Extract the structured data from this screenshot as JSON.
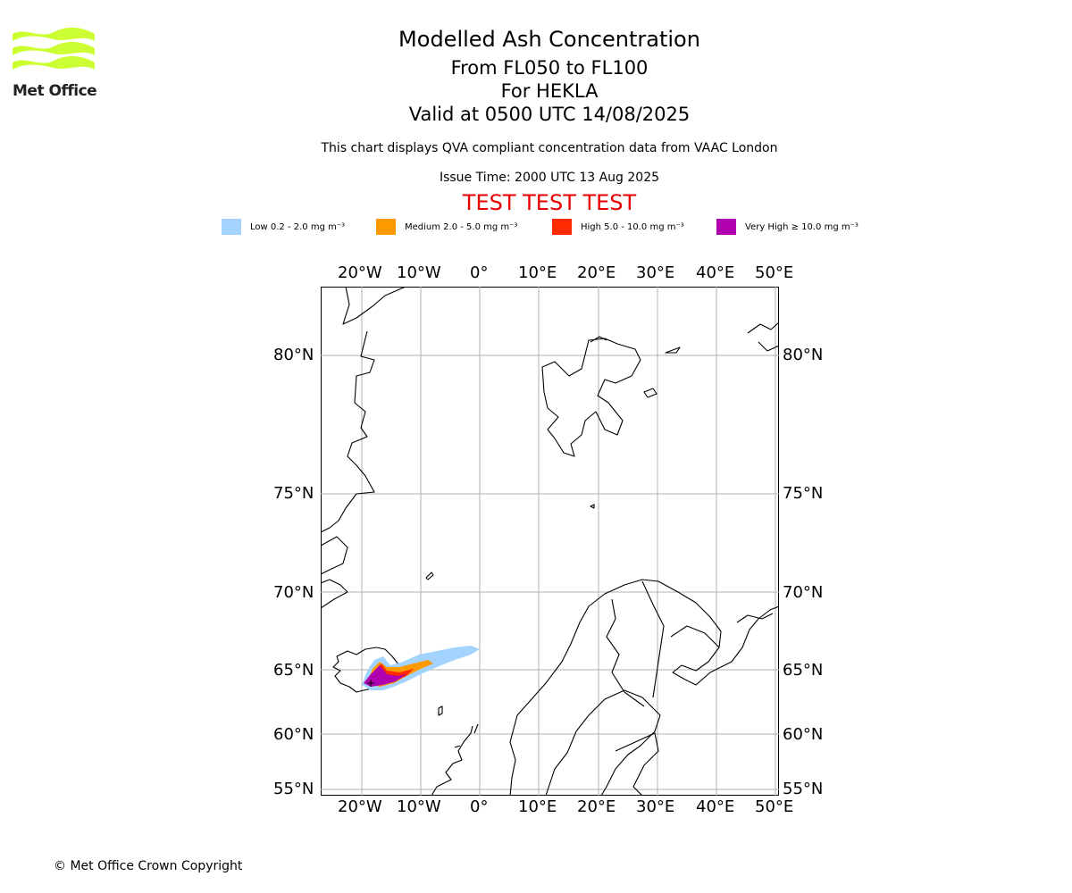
{
  "logo": {
    "text": "Met Office",
    "color": "#ccff33"
  },
  "titles": {
    "main": "Modelled Ash Concentration",
    "levels": "From FL050 to FL100",
    "volcano": "For HEKLA",
    "valid": "Valid at 0500 UTC 14/08/2025"
  },
  "note": "This chart displays QVA compliant concentration data from VAAC London",
  "issue_time": "Issue Time: 2000 UTC 13 Aug 2025",
  "test_banner": "TEST TEST TEST",
  "legend": [
    {
      "label": "Low 0.2 - 2.0 mg m⁻³",
      "color": "#a3d4ff"
    },
    {
      "label": "Medium 2.0 - 5.0 mg m⁻³",
      "color": "#ff9900"
    },
    {
      "label": "High 5.0 - 10.0 mg m⁻³",
      "color": "#ff2a00"
    },
    {
      "label": "Very High ≥ 10.0 mg m⁻³",
      "color": "#b000b0"
    }
  ],
  "lon_ticks": [
    "20°W",
    "10°W",
    "0°",
    "10°E",
    "20°E",
    "30°E",
    "40°E",
    "50°E"
  ],
  "lat_ticks": [
    "80°N",
    "75°N",
    "70°N",
    "65°N",
    "60°N",
    "55°N"
  ],
  "copyright": "© Met Office Crown Copyright"
}
